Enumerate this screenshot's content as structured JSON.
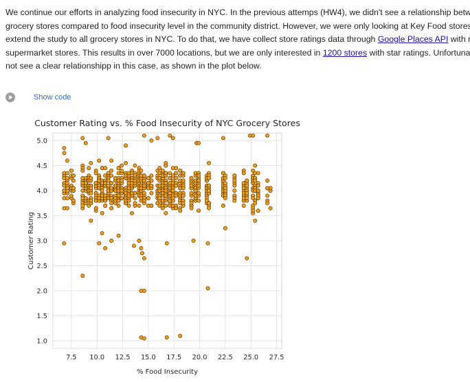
{
  "paragraph": {
    "line1": "We continue our efforts in analyzing food insecurity in NYC. In the previous attemps (HW4), we didn't see a relationship between",
    "line2": "grocery stores compared to food insecurity level in the community district. However, we were only looking at Key Food stores. W",
    "line3_pre": "extend the study to all grocery stores in NYC. To do that, we have collect store ratings data through ",
    "line3_link": "Google Places API",
    "line3_post": " with respe",
    "line4_pre": "supermarket stores. This results in over 7000 locations, but we are only interested in ",
    "line4_link": "1200 stores",
    "line4_post": " with star ratings. Unfortunately",
    "line5": "not see a clear relationshipp in this case, as shown in the plot below."
  },
  "cell": {
    "show_code_label": "Show code",
    "icon": "play-circle-icon"
  },
  "colors": {
    "point_fill": "#f0a01e",
    "point_edge": "#5a3a00",
    "link": "#1a0dab",
    "show_code": "#3367d6"
  },
  "chart_data": {
    "type": "scatter",
    "title": "Customer Rating vs. % Food Insecurity of NYC Grocery Stores",
    "xlabel": "% Food Insecurity",
    "ylabel": "Customer Rating",
    "xlim": [
      5.7,
      28.0
    ],
    "ylim": [
      0.85,
      5.15
    ],
    "xticks": [
      "7.5",
      "10.0",
      "12.5",
      "15.0",
      "17.5",
      "20.0",
      "22.5",
      "25.0",
      "27.5"
    ],
    "xtick_values": [
      7.5,
      10.0,
      12.5,
      15.0,
      17.5,
      20.0,
      22.5,
      25.0,
      27.5
    ],
    "yticks": [
      "1.0",
      "1.5",
      "2.0",
      "2.5",
      "3.0",
      "3.5",
      "4.0",
      "4.5",
      "5.0"
    ],
    "ytick_values": [
      1.0,
      1.5,
      2.0,
      2.5,
      3.0,
      3.5,
      4.0,
      4.5,
      5.0
    ],
    "grid": true,
    "legend": "none",
    "columns": [
      {
        "x": 6.8,
        "n": 16
      },
      {
        "x": 7.1,
        "n": 14
      },
      {
        "x": 7.5,
        "n": 12
      },
      {
        "x": 7.7,
        "n": 10
      },
      {
        "x": 8.6,
        "n": 22
      },
      {
        "x": 8.9,
        "n": 18
      },
      {
        "x": 9.2,
        "n": 20
      },
      {
        "x": 9.4,
        "n": 15
      },
      {
        "x": 9.9,
        "n": 22
      },
      {
        "x": 10.2,
        "n": 26
      },
      {
        "x": 10.5,
        "n": 24
      },
      {
        "x": 10.8,
        "n": 22
      },
      {
        "x": 11.1,
        "n": 20
      },
      {
        "x": 11.4,
        "n": 18
      },
      {
        "x": 11.8,
        "n": 22
      },
      {
        "x": 12.1,
        "n": 26
      },
      {
        "x": 12.4,
        "n": 24
      },
      {
        "x": 12.8,
        "n": 26
      },
      {
        "x": 13.1,
        "n": 24
      },
      {
        "x": 13.4,
        "n": 22
      },
      {
        "x": 13.7,
        "n": 14
      },
      {
        "x": 14.1,
        "n": 20
      },
      {
        "x": 14.3,
        "n": 26
      },
      {
        "x": 14.6,
        "n": 22
      },
      {
        "x": 15.0,
        "n": 14
      },
      {
        "x": 15.3,
        "n": 10
      },
      {
        "x": 15.9,
        "n": 16
      },
      {
        "x": 16.1,
        "n": 22
      },
      {
        "x": 16.4,
        "n": 28
      },
      {
        "x": 16.7,
        "n": 30
      },
      {
        "x": 17.1,
        "n": 26
      },
      {
        "x": 17.4,
        "n": 20
      },
      {
        "x": 17.7,
        "n": 14
      },
      {
        "x": 18.1,
        "n": 22
      },
      {
        "x": 18.4,
        "n": 24
      },
      {
        "x": 19.2,
        "n": 18
      },
      {
        "x": 19.6,
        "n": 20
      },
      {
        "x": 19.9,
        "n": 16
      },
      {
        "x": 20.7,
        "n": 20
      },
      {
        "x": 20.9,
        "n": 18
      },
      {
        "x": 22.3,
        "n": 18
      },
      {
        "x": 22.5,
        "n": 14
      },
      {
        "x": 23.4,
        "n": 12
      },
      {
        "x": 24.3,
        "n": 14
      },
      {
        "x": 24.6,
        "n": 12
      },
      {
        "x": 25.2,
        "n": 18
      },
      {
        "x": 25.4,
        "n": 14
      },
      {
        "x": 25.7,
        "n": 16
      },
      {
        "x": 26.6,
        "n": 6
      },
      {
        "x": 26.9,
        "n": 4
      }
    ],
    "points": [
      {
        "x": 6.8,
        "y": 2.95
      },
      {
        "x": 6.8,
        "y": 4.75
      },
      {
        "x": 6.8,
        "y": 4.85
      },
      {
        "x": 7.1,
        "y": 4.6
      },
      {
        "x": 8.6,
        "y": 2.3
      },
      {
        "x": 8.6,
        "y": 5.05
      },
      {
        "x": 8.9,
        "y": 4.95
      },
      {
        "x": 9.4,
        "y": 3.4
      },
      {
        "x": 10.2,
        "y": 2.95
      },
      {
        "x": 10.8,
        "y": 2.85
      },
      {
        "x": 10.5,
        "y": 3.15
      },
      {
        "x": 11.1,
        "y": 5.05
      },
      {
        "x": 11.4,
        "y": 3.0
      },
      {
        "x": 12.1,
        "y": 3.1
      },
      {
        "x": 12.8,
        "y": 4.9
      },
      {
        "x": 13.4,
        "y": 3.55
      },
      {
        "x": 13.6,
        "y": 2.9
      },
      {
        "x": 14.3,
        "y": 2.85
      },
      {
        "x": 14.1,
        "y": 3.0
      },
      {
        "x": 14.4,
        "y": 2.75
      },
      {
        "x": 14.6,
        "y": 2.65
      },
      {
        "x": 14.3,
        "y": 2.0
      },
      {
        "x": 14.6,
        "y": 2.0
      },
      {
        "x": 14.3,
        "y": 1.07
      },
      {
        "x": 14.6,
        "y": 1.05
      },
      {
        "x": 14.6,
        "y": 5.1
      },
      {
        "x": 15.3,
        "y": 5.0
      },
      {
        "x": 15.9,
        "y": 5.05
      },
      {
        "x": 16.8,
        "y": 1.07
      },
      {
        "x": 17.1,
        "y": 5.1
      },
      {
        "x": 17.4,
        "y": 5.05
      },
      {
        "x": 18.1,
        "y": 1.1
      },
      {
        "x": 16.8,
        "y": 2.95
      },
      {
        "x": 19.4,
        "y": 3.0
      },
      {
        "x": 19.7,
        "y": 4.95
      },
      {
        "x": 19.9,
        "y": 4.95
      },
      {
        "x": 20.8,
        "y": 2.05
      },
      {
        "x": 20.8,
        "y": 2.95
      },
      {
        "x": 22.3,
        "y": 5.05
      },
      {
        "x": 22.5,
        "y": 3.25
      },
      {
        "x": 24.6,
        "y": 2.65
      },
      {
        "x": 24.9,
        "y": 5.1
      },
      {
        "x": 25.2,
        "y": 5.1
      },
      {
        "x": 26.6,
        "y": 5.1
      },
      {
        "x": 25.4,
        "y": 3.4
      },
      {
        "x": 26.9,
        "y": 4.05
      },
      {
        "x": 26.6,
        "y": 4.05
      }
    ]
  }
}
